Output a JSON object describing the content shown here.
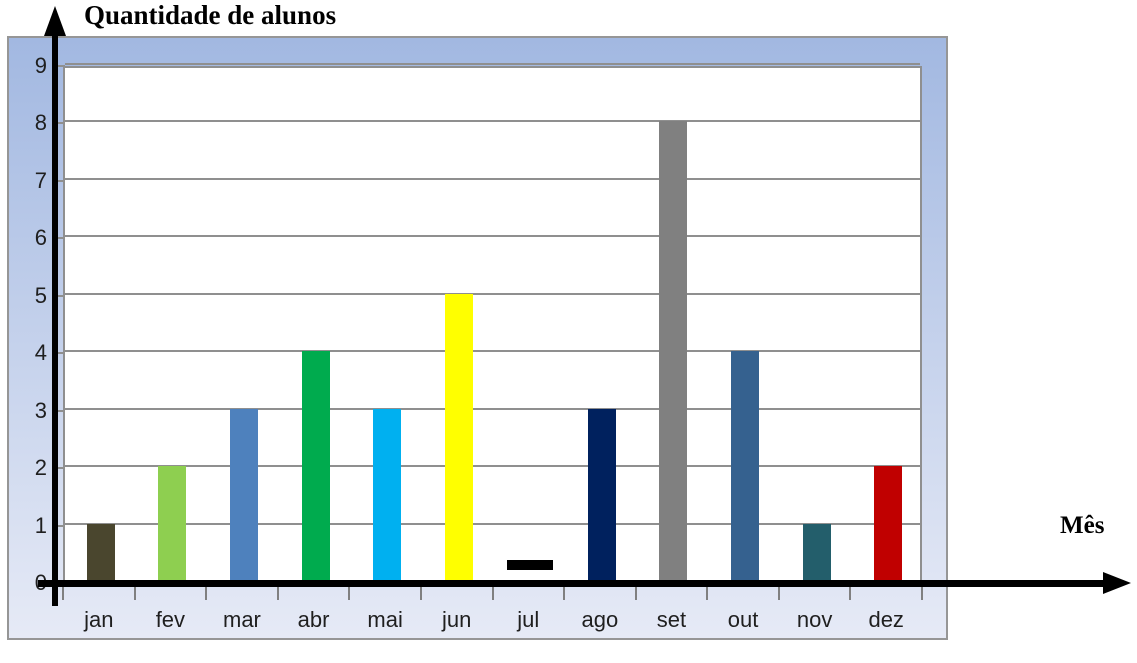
{
  "chart_data": {
    "type": "bar",
    "title": "Quantidade de alunos",
    "xlabel": "Mês",
    "ylabel": "Quantidade de alunos",
    "categories": [
      "jan",
      "fev",
      "mar",
      "abr",
      "mai",
      "jun",
      "jul",
      "ago",
      "set",
      "out",
      "nov",
      "dez"
    ],
    "values": [
      1,
      2,
      3,
      4,
      3,
      5,
      0,
      3,
      8,
      4,
      1,
      2
    ],
    "point_styles": [
      "bar",
      "bar",
      "bar",
      "bar",
      "bar",
      "bar",
      "dash",
      "bar",
      "bar",
      "bar",
      "bar",
      "bar"
    ],
    "bar_colors": [
      "#4a462e",
      "#8ecf50",
      "#4e81bd",
      "#00ab4e",
      "#00b0f0",
      "#ffff00",
      "#000000",
      "#00215e",
      "#808080",
      "#35618f",
      "#235e6b",
      "#c00000"
    ],
    "yticks": [
      0,
      1,
      2,
      3,
      4,
      5,
      6,
      7,
      8,
      9
    ],
    "ylim": [
      0,
      9
    ],
    "grid": true,
    "legend": false,
    "annotations": [
      "jul value shown as short black dash just above the zero axis"
    ],
    "colors": {
      "frame_gradient_top": "#a2b8e1",
      "frame_gradient_bottom": "#e6eaf6",
      "frame_border": "#969696",
      "plot_background": "#ffffff",
      "plot_border": "#8f8f8f",
      "gridline": "#8f8f8f",
      "tick": "#808080",
      "axis": "#000000",
      "label_text": "#1f1f1f",
      "title_text": "#000000"
    }
  }
}
